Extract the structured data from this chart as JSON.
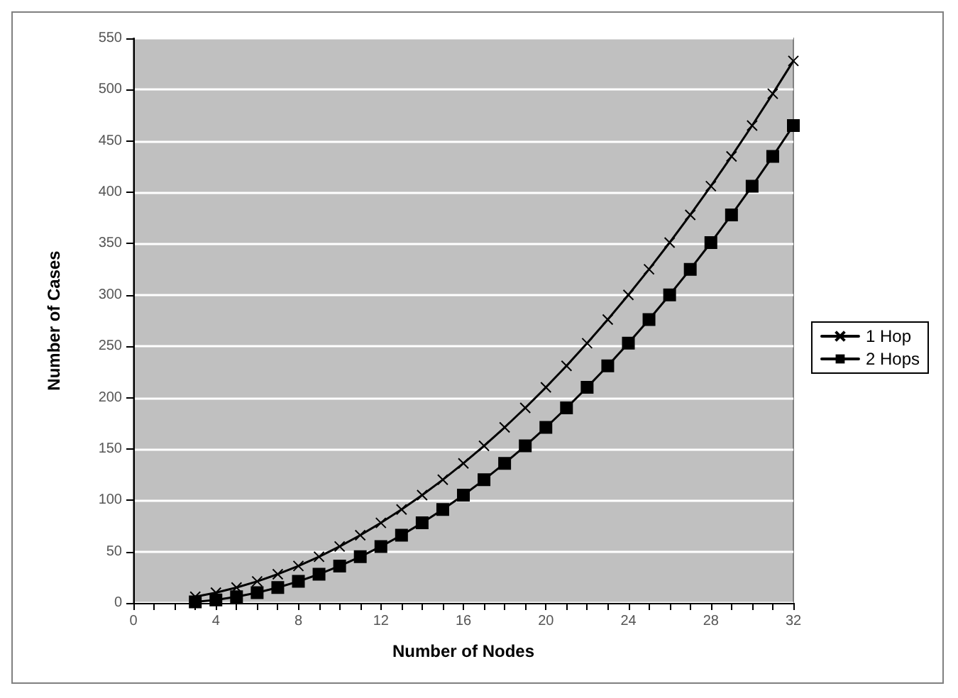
{
  "chart_data": {
    "type": "line",
    "xlabel": "Number of Nodes",
    "ylabel": "Number of Cases",
    "x": [
      3,
      4,
      5,
      6,
      7,
      8,
      9,
      10,
      11,
      12,
      13,
      14,
      15,
      16,
      17,
      18,
      19,
      20,
      21,
      22,
      23,
      24,
      25,
      26,
      27,
      28,
      29,
      30,
      31,
      32
    ],
    "series": [
      {
        "name": "1 Hop",
        "color": "#000000",
        "marker": "cross",
        "values": [
          6,
          10,
          15,
          21,
          28,
          36,
          45,
          55,
          66,
          78,
          91,
          105,
          120,
          136,
          153,
          171,
          190,
          210,
          231,
          253,
          276,
          300,
          325,
          351,
          378,
          406,
          435,
          465,
          496,
          528
        ]
      },
      {
        "name": "2 Hops",
        "color": "#000000",
        "marker": "square",
        "values": [
          1,
          3,
          6,
          10,
          15,
          21,
          28,
          36,
          45,
          55,
          66,
          78,
          91,
          105,
          120,
          136,
          153,
          171,
          190,
          210,
          231,
          253,
          276,
          300,
          325,
          351,
          378,
          406,
          435,
          465
        ]
      }
    ],
    "xlim": [
      0,
      32
    ],
    "xticks": [
      0,
      {
        "value": 1,
        "label": null
      },
      {
        "value": 2,
        "label": null
      },
      {
        "value": 3,
        "label": null
      },
      4,
      {
        "value": 5,
        "label": null
      },
      {
        "value": 6,
        "label": null
      },
      {
        "value": 7,
        "label": null
      },
      8,
      {
        "value": 9,
        "label": null
      },
      {
        "value": 10,
        "label": null
      },
      {
        "value": 11,
        "label": null
      },
      12,
      {
        "value": 13,
        "label": null
      },
      {
        "value": 14,
        "label": null
      },
      {
        "value": 15,
        "label": null
      },
      16,
      {
        "value": 17,
        "label": null
      },
      {
        "value": 18,
        "label": null
      },
      {
        "value": 19,
        "label": null
      },
      20,
      {
        "value": 21,
        "label": null
      },
      {
        "value": 22,
        "label": null
      },
      {
        "value": 23,
        "label": null
      },
      24,
      {
        "value": 25,
        "label": null
      },
      {
        "value": 26,
        "label": null
      },
      {
        "value": 27,
        "label": null
      },
      28,
      {
        "value": 29,
        "label": null
      },
      {
        "value": 30,
        "label": null
      },
      {
        "value": 31,
        "label": null
      },
      32
    ],
    "ylim": [
      0,
      550
    ],
    "yticks": [
      0,
      50,
      100,
      150,
      200,
      250,
      300,
      350,
      400,
      450,
      500,
      550
    ],
    "grid": "y",
    "legend": "right",
    "line_style": "solid"
  }
}
